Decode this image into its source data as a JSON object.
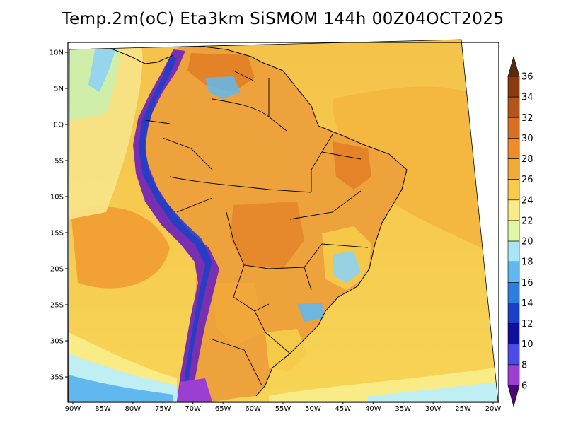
{
  "title": "Temp.2m(oC) Eta3km SiSMOM 144h 00Z04OCT2025",
  "map": {
    "lon_ticks": [
      "90W",
      "85W",
      "80W",
      "75W",
      "70W",
      "65W",
      "60W",
      "55W",
      "50W",
      "45W",
      "40W",
      "35W",
      "30W",
      "25W",
      "20W"
    ],
    "lat_ticks": [
      "10N",
      "5N",
      "EQ",
      "5S",
      "10S",
      "15S",
      "20S",
      "25S",
      "30S",
      "35S"
    ],
    "lon_range": [
      -90,
      -20
    ],
    "lat_range": [
      -38,
      12
    ],
    "background_color": "#f6cc4a",
    "land_color": "#eea23c",
    "ocean_warm_color": "#f1992f",
    "coast_cool_color": "#8fd2f5",
    "andes_color": "#7a2fb0"
  },
  "colorbar": {
    "labels": [
      "36",
      "34",
      "32",
      "30",
      "28",
      "26",
      "24",
      "22",
      "20",
      "18",
      "16",
      "14",
      "12",
      "10",
      "8",
      "6"
    ],
    "colors": [
      "#6b2e0f",
      "#8b3a10",
      "#b2551b",
      "#d86f22",
      "#ee8b2c",
      "#f2aa38",
      "#f6cc4a",
      "#f9eb85",
      "#dff7a5",
      "#a8e6f7",
      "#61b8ee",
      "#2c7fe0",
      "#1a40c9",
      "#10109a",
      "#4b4ce8",
      "#9b3fd2",
      "#5a0a8f"
    ],
    "arrow_top_color": "#5a2a10",
    "arrow_bottom_color": "#4a0874"
  }
}
